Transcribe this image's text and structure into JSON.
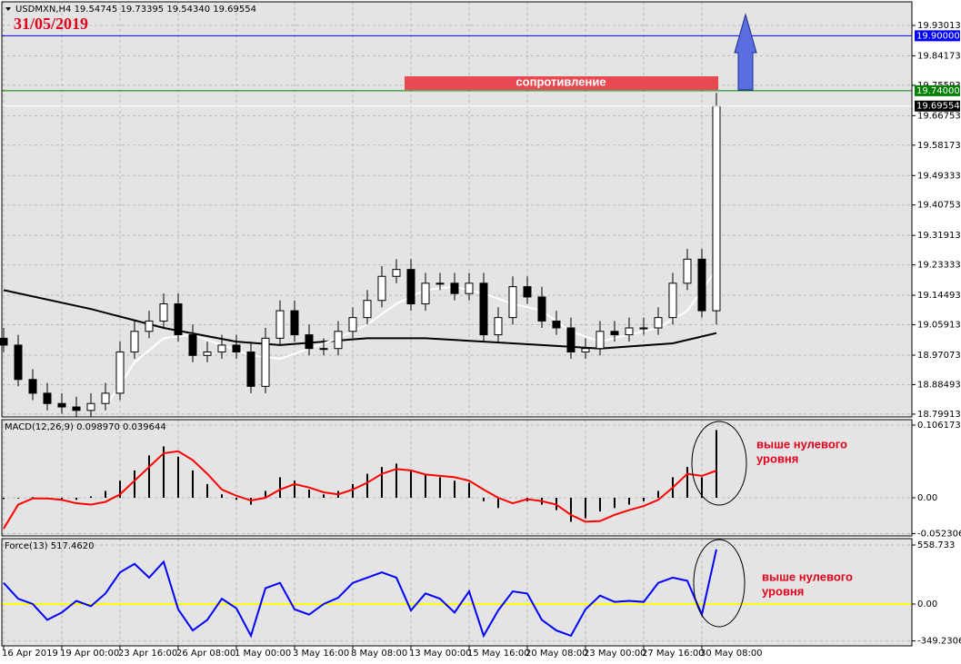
{
  "header": {
    "symbol_line": "USDMXN,H4  19.54745 19.73395 19.54340 19.69554",
    "date": "31/05/2019"
  },
  "chart_data": [
    {
      "type": "candlestick",
      "xlim": [
        -0.125,
        62.44
      ],
      "xticks": [
        {
          "value": 0,
          "label": "16 Apr 2019"
        },
        {
          "value": 4,
          "label": "19 Apr 00:00"
        },
        {
          "value": 8,
          "label": "23 Apr 16:00"
        },
        {
          "value": 12,
          "label": "26 Apr 08:00"
        },
        {
          "value": 16,
          "label": "1 May 00:00"
        },
        {
          "value": 20,
          "label": "3 May 16:00"
        },
        {
          "value": 24,
          "label": "8 May 08:00"
        },
        {
          "value": 28,
          "label": "13 May 00:00"
        },
        {
          "value": 32,
          "label": "15 May 16:00"
        },
        {
          "value": 36,
          "label": "20 May 08:00"
        },
        {
          "value": 40,
          "label": "23 May 00:00"
        },
        {
          "value": 44,
          "label": "27 May 16:00"
        },
        {
          "value": 48,
          "label": "30 May 08:00"
        }
      ],
      "ylim": [
        18.791,
        19.9988
      ],
      "yticks": [
        19.93013,
        19.84173,
        19.75593,
        19.66753,
        19.58173,
        19.49333,
        19.40753,
        19.31913,
        19.23333,
        19.14493,
        19.05913,
        18.97073,
        18.88493,
        18.79913
      ],
      "grid": true,
      "up_color": "#ffffff",
      "down_color": "#000000",
      "open": [
        19.02,
        19.0,
        18.9,
        18.86,
        18.83,
        18.82,
        18.81,
        18.83,
        18.86,
        18.98,
        19.04,
        19.07,
        19.12,
        19.03,
        18.97,
        18.98,
        19.0,
        18.98,
        18.88,
        19.02,
        19.1,
        19.03,
        18.99,
        18.99,
        19.04,
        19.08,
        19.13,
        19.2,
        19.22,
        19.12,
        19.18,
        19.18,
        19.15,
        19.18,
        19.03,
        19.08,
        19.17,
        19.14,
        19.07,
        19.05,
        18.98,
        18.99,
        19.04,
        19.03,
        19.05,
        19.05,
        19.08,
        19.18,
        19.25,
        19.1
      ],
      "high": [
        19.05,
        19.03,
        18.93,
        18.89,
        18.86,
        18.85,
        18.86,
        18.89,
        19.01,
        19.07,
        19.1,
        19.15,
        19.15,
        19.06,
        19.01,
        19.03,
        19.03,
        19.01,
        19.05,
        19.13,
        19.13,
        19.06,
        19.02,
        19.07,
        19.11,
        19.16,
        19.23,
        19.25,
        19.25,
        19.21,
        19.21,
        19.21,
        19.21,
        19.21,
        19.11,
        19.2,
        19.2,
        19.17,
        19.1,
        19.08,
        19.02,
        19.07,
        19.07,
        19.08,
        19.08,
        19.11,
        19.21,
        19.28,
        19.28,
        19.73395
      ],
      "low": [
        18.98,
        18.88,
        18.84,
        18.81,
        18.8,
        18.79,
        18.79,
        18.81,
        18.84,
        18.96,
        19.02,
        19.05,
        19.01,
        18.95,
        18.95,
        18.96,
        18.96,
        18.86,
        18.86,
        19.0,
        19.01,
        18.97,
        18.97,
        18.97,
        19.02,
        19.06,
        19.11,
        19.18,
        19.1,
        19.1,
        19.16,
        19.13,
        19.13,
        19.01,
        19.01,
        19.06,
        19.12,
        19.05,
        19.03,
        18.96,
        18.96,
        18.97,
        19.01,
        19.01,
        19.03,
        19.03,
        19.06,
        19.16,
        19.08,
        19.06
      ],
      "close": [
        19.0,
        18.9,
        18.86,
        18.83,
        18.82,
        18.81,
        18.83,
        18.86,
        18.98,
        19.04,
        19.07,
        19.12,
        19.03,
        18.97,
        18.98,
        19.0,
        18.98,
        18.88,
        19.02,
        19.1,
        19.03,
        18.99,
        18.99,
        19.04,
        19.08,
        19.13,
        19.2,
        19.22,
        19.12,
        19.18,
        19.18,
        19.15,
        19.18,
        19.03,
        19.08,
        19.17,
        19.14,
        19.07,
        19.05,
        18.98,
        18.99,
        19.04,
        19.03,
        19.05,
        19.05,
        19.08,
        19.18,
        19.25,
        19.1,
        19.69554
      ],
      "lines": [
        {
          "color": "#000000",
          "x": [
            0,
            6,
            11,
            16,
            19,
            25,
            29,
            33,
            37,
            41,
            46,
            49
          ],
          "values": [
            19.16,
            19.105,
            19.05,
            19.01,
            19.0,
            19.02,
            19.02,
            19.01,
            19.0,
            18.99,
            19.005,
            19.035
          ]
        },
        {
          "color": "#ffffff",
          "x": [
            7,
            9,
            11,
            13,
            15,
            17,
            19,
            21,
            23,
            25,
            27,
            29,
            31,
            33,
            35,
            37,
            39,
            41,
            43,
            45,
            47,
            49
          ],
          "values": [
            18.82,
            18.95,
            19.02,
            19.03,
            19.0,
            18.97,
            18.96,
            18.99,
            19.02,
            19.06,
            19.12,
            19.16,
            19.17,
            19.15,
            19.12,
            19.1,
            19.04,
            19.01,
            19.03,
            19.05,
            19.1,
            19.22
          ]
        }
      ],
      "levels": [
        {
          "value": 19.9,
          "label": "19.90000",
          "color": "#0000ff"
        },
        {
          "value": 19.74,
          "label": "19.74000",
          "color": "#008000"
        },
        {
          "value": 19.69554,
          "color": "#ffffff"
        }
      ],
      "annotation": "сопротивление"
    },
    {
      "type": "macd",
      "title": "MACD(12,26,9) 0.098970 0.039644",
      "xlim": [
        -0.125,
        62.44
      ],
      "ylim": [
        -0.0557,
        0.1141
      ],
      "yticks": [
        0.106173,
        {
          "value": 0,
          "label": "0.00"
        },
        -0.052306
      ],
      "histogram_color": "#000000",
      "signal_color": "#ff0000",
      "histogram": [
        -0.002,
        -0.001,
        0.001,
        -0.002,
        -0.004,
        -0.003,
        0.002,
        0.01,
        0.025,
        0.04,
        0.062,
        0.075,
        0.06,
        0.04,
        0.02,
        0.005,
        -0.003,
        -0.01,
        0.01,
        0.03,
        0.025,
        0.012,
        0.005,
        0.01,
        0.02,
        0.035,
        0.045,
        0.05,
        0.04,
        0.035,
        0.03,
        0.025,
        0.022,
        -0.005,
        -0.015,
        0.0,
        -0.005,
        -0.01,
        -0.018,
        -0.035,
        -0.03,
        -0.02,
        -0.015,
        -0.01,
        -0.005,
        0.01,
        0.03,
        0.045,
        0.03,
        0.09897
      ],
      "signal": [
        -0.045,
        -0.01,
        -0.001,
        -0.001,
        -0.003,
        -0.008,
        -0.01,
        -0.006,
        0.005,
        0.025,
        0.045,
        0.065,
        0.068,
        0.055,
        0.035,
        0.012,
        0.003,
        -0.004,
        0.0,
        0.012,
        0.02,
        0.015,
        0.008,
        0.005,
        0.012,
        0.022,
        0.035,
        0.042,
        0.04,
        0.034,
        0.032,
        0.03,
        0.025,
        0.012,
        0.0,
        -0.008,
        -0.002,
        -0.005,
        -0.01,
        -0.025,
        -0.035,
        -0.034,
        -0.025,
        -0.018,
        -0.012,
        -0.003,
        0.015,
        0.035,
        0.032,
        0.039644
      ],
      "annotation": [
        "выше нулевого",
        "уровня"
      ]
    },
    {
      "type": "line",
      "title": "Force(13) 517.4620",
      "xlim": [
        -0.125,
        62.44
      ],
      "ylim": [
        -395.5,
        618.9
      ],
      "yticks": [
        558.733,
        {
          "value": 0,
          "label": "0.00"
        },
        -349.2306
      ],
      "color": "#0000ff",
      "zero_line_color": "#ffff00",
      "values": [
        200,
        50,
        0,
        -150,
        -80,
        30,
        -20,
        100,
        300,
        380,
        250,
        400,
        -50,
        -250,
        -150,
        50,
        -40,
        -300,
        150,
        200,
        -50,
        -100,
        0,
        60,
        200,
        250,
        300,
        250,
        -60,
        100,
        50,
        -80,
        120,
        -300,
        -60,
        120,
        100,
        -150,
        -250,
        -300,
        -50,
        80,
        20,
        30,
        20,
        200,
        250,
        220,
        -100,
        517.462
      ],
      "annotation": [
        "выше нулевого",
        "уровня"
      ]
    }
  ]
}
